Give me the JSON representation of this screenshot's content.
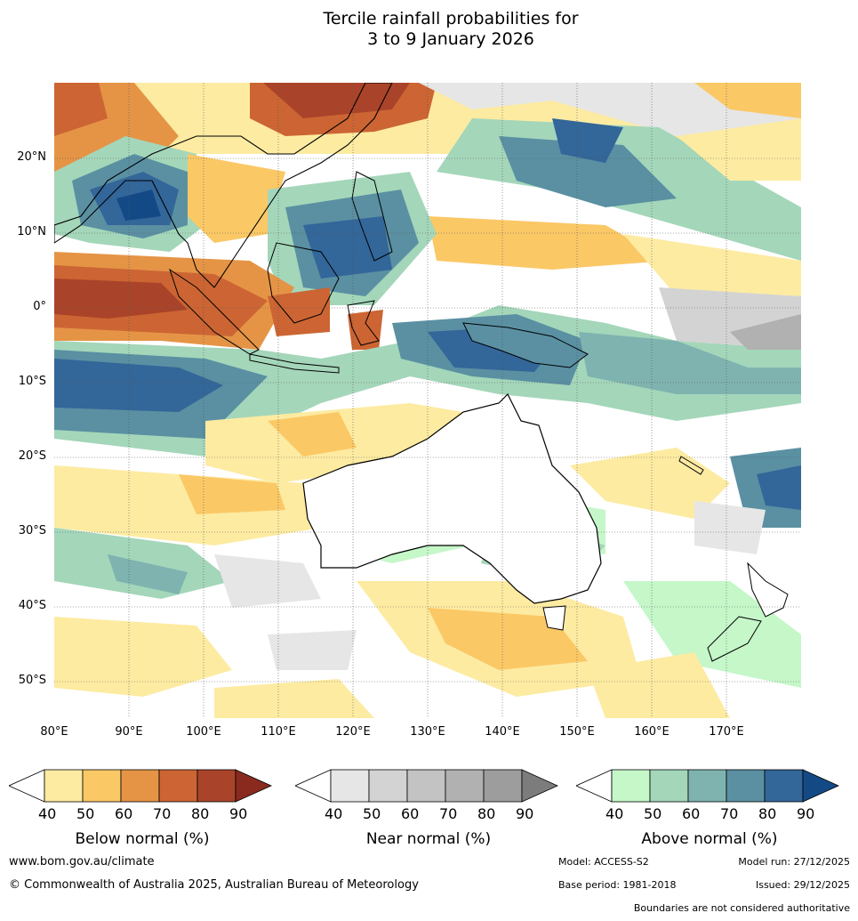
{
  "title": {
    "line1": "Tercile rainfall probabilities for",
    "line2": "3 to 9 January 2026"
  },
  "map": {
    "lat_labels": [
      "20°N",
      "10°N",
      "0°",
      "10°S",
      "20°S",
      "30°S",
      "40°S",
      "50°S"
    ],
    "lon_labels": [
      "80°E",
      "90°E",
      "100°E",
      "110°E",
      "120°E",
      "130°E",
      "140°E",
      "150°E",
      "160°E",
      "170°E"
    ]
  },
  "legends": [
    {
      "title": "Below normal (%)",
      "ticks": [
        "40",
        "50",
        "60",
        "70",
        "80",
        "90"
      ],
      "colors": [
        "#ffffff",
        "#fdeba2",
        "#fbc866",
        "#e59446",
        "#cc6533",
        "#a9442a",
        "#8a2a1e"
      ]
    },
    {
      "title": "Near normal (%)",
      "ticks": [
        "40",
        "50",
        "60",
        "70",
        "80",
        "90"
      ],
      "colors": [
        "#ffffff",
        "#e6e6e6",
        "#d3d3d3",
        "#c3c3c3",
        "#b1b1b1",
        "#9d9d9d",
        "#7c7c7c"
      ]
    },
    {
      "title": "Above normal (%)",
      "ticks": [
        "40",
        "50",
        "60",
        "70",
        "80",
        "90"
      ],
      "colors": [
        "#ffffff",
        "#c5f7c9",
        "#a4d6ba",
        "#7fb3b0",
        "#5a90a2",
        "#336699",
        "#134a86"
      ]
    }
  ],
  "footer": {
    "website": "www.bom.gov.au/climate",
    "copyright": "© Commonwealth of Australia 2025, Australian Bureau of Meteorology",
    "model": "Model: ACCESS-S2",
    "model_run": "Model run: 27/12/2025",
    "base_period": "Base period: 1981-2018",
    "issued": "Issued: 29/12/2025",
    "disclaimer": "Boundaries are not considered authoritative"
  }
}
